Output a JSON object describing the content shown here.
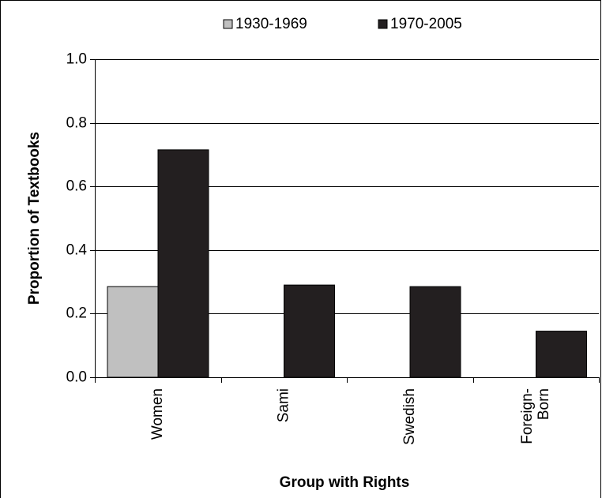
{
  "chart_data": {
    "type": "bar",
    "categories": [
      [
        "Women"
      ],
      [
        "Sami"
      ],
      [
        "Swedish"
      ],
      [
        "Foreign-",
        "Born"
      ]
    ],
    "series": [
      {
        "name": "1930-1969",
        "values": [
          0.285,
          0,
          0,
          0
        ],
        "color": "#c0c0c0"
      },
      {
        "name": "1970-2005",
        "values": [
          0.715,
          0.29,
          0.285,
          0.145
        ],
        "color": "#231f20"
      }
    ],
    "xlabel": "Group with Rights",
    "ylabel": "Proportion of Textbooks",
    "ylim": [
      0,
      1.0
    ],
    "yticks": [
      "0.0",
      "0.2",
      "0.4",
      "0.6",
      "0.8",
      "1.0"
    ],
    "grid": true,
    "legend": "top"
  }
}
